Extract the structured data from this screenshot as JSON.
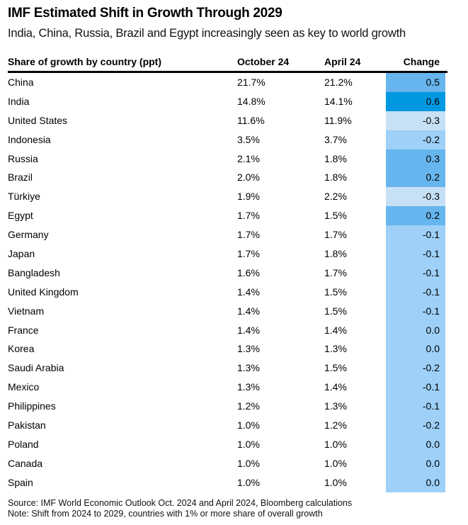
{
  "title": "IMF Estimated Shift in Growth Through 2029",
  "subtitle": "India, China, Russia, Brazil and Egypt increasingly seen as key to world growth",
  "colors": {
    "strong_positive": "#0098e1",
    "positive": "#67b5ee",
    "slight_negative": "#9ed0f8",
    "negative": "#c6e0f5"
  },
  "chart_data": {
    "type": "table",
    "title": "IMF Estimated Shift in Growth Through 2029",
    "subtitle": "India, China, Russia, Brazil and Egypt increasingly seen as key to world growth",
    "columns": [
      "Share of growth by country (ppt)",
      "October 24",
      "April 24",
      "Change"
    ],
    "rows": [
      {
        "country": "China",
        "oct": "21.7%",
        "apr": "21.2%",
        "change": "0.5",
        "tier": "positive"
      },
      {
        "country": "India",
        "oct": "14.8%",
        "apr": "14.1%",
        "change": "0.6",
        "tier": "strong_positive"
      },
      {
        "country": "United States",
        "oct": "11.6%",
        "apr": "11.9%",
        "change": "-0.3",
        "tier": "negative"
      },
      {
        "country": "Indonesia",
        "oct": "3.5%",
        "apr": "3.7%",
        "change": "-0.2",
        "tier": "slight_negative"
      },
      {
        "country": "Russia",
        "oct": "2.1%",
        "apr": "1.8%",
        "change": "0.3",
        "tier": "positive"
      },
      {
        "country": "Brazil",
        "oct": "2.0%",
        "apr": "1.8%",
        "change": "0.2",
        "tier": "positive"
      },
      {
        "country": "Türkiye",
        "oct": "1.9%",
        "apr": "2.2%",
        "change": "-0.3",
        "tier": "negative"
      },
      {
        "country": "Egypt",
        "oct": "1.7%",
        "apr": "1.5%",
        "change": "0.2",
        "tier": "positive"
      },
      {
        "country": "Germany",
        "oct": "1.7%",
        "apr": "1.7%",
        "change": "-0.1",
        "tier": "slight_negative"
      },
      {
        "country": "Japan",
        "oct": "1.7%",
        "apr": "1.8%",
        "change": "-0.1",
        "tier": "slight_negative"
      },
      {
        "country": "Bangladesh",
        "oct": "1.6%",
        "apr": "1.7%",
        "change": "-0.1",
        "tier": "slight_negative"
      },
      {
        "country": "United Kingdom",
        "oct": "1.4%",
        "apr": "1.5%",
        "change": "-0.1",
        "tier": "slight_negative"
      },
      {
        "country": "Vietnam",
        "oct": "1.4%",
        "apr": "1.5%",
        "change": "-0.1",
        "tier": "slight_negative"
      },
      {
        "country": "France",
        "oct": "1.4%",
        "apr": "1.4%",
        "change": "0.0",
        "tier": "slight_negative"
      },
      {
        "country": "Korea",
        "oct": "1.3%",
        "apr": "1.3%",
        "change": "0.0",
        "tier": "slight_negative"
      },
      {
        "country": "Saudi Arabia",
        "oct": "1.3%",
        "apr": "1.5%",
        "change": "-0.2",
        "tier": "slight_negative"
      },
      {
        "country": "Mexico",
        "oct": "1.3%",
        "apr": "1.4%",
        "change": "-0.1",
        "tier": "slight_negative"
      },
      {
        "country": "Philippines",
        "oct": "1.2%",
        "apr": "1.3%",
        "change": "-0.1",
        "tier": "slight_negative"
      },
      {
        "country": "Pakistan",
        "oct": "1.0%",
        "apr": "1.2%",
        "change": "-0.2",
        "tier": "slight_negative"
      },
      {
        "country": "Poland",
        "oct": "1.0%",
        "apr": "1.0%",
        "change": "0.0",
        "tier": "slight_negative"
      },
      {
        "country": "Canada",
        "oct": "1.0%",
        "apr": "1.0%",
        "change": "0.0",
        "tier": "slight_negative"
      },
      {
        "country": "Spain",
        "oct": "1.0%",
        "apr": "1.0%",
        "change": "0.0",
        "tier": "slight_negative"
      }
    ],
    "source": "Source: IMF World Economic Outlook Oct. 2024 and April 2024, Bloomberg calculations",
    "note": "Note: Shift from 2024 to 2029, countries with 1% or more share of overall growth"
  }
}
